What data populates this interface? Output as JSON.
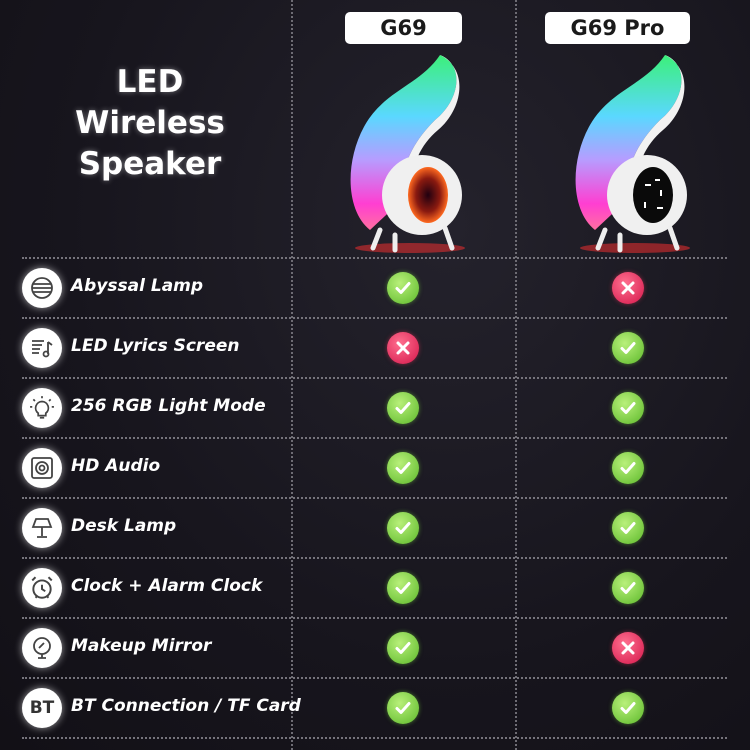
{
  "title_lines": [
    "LED",
    "Wireless",
    "Speaker"
  ],
  "models": [
    {
      "name": "G69"
    },
    {
      "name": "G69 Pro"
    }
  ],
  "colors": {
    "check": "#6cc534",
    "cross": "#e0245a",
    "background": "#16141c"
  },
  "features": [
    {
      "label": "Abyssal Lamp",
      "icon": "abyssal-lamp-icon",
      "g69": true,
      "g69pro": false
    },
    {
      "label": "LED Lyrics Screen",
      "icon": "music-lyrics-icon",
      "g69": false,
      "g69pro": true
    },
    {
      "label": "256 RGB Light Mode",
      "icon": "light-bulb-icon",
      "g69": true,
      "g69pro": true
    },
    {
      "label": "HD Audio",
      "icon": "speaker-icon",
      "g69": true,
      "g69pro": true
    },
    {
      "label": "Desk Lamp",
      "icon": "desk-lamp-icon",
      "g69": true,
      "g69pro": true
    },
    {
      "label": "Clock + Alarm Clock",
      "icon": "alarm-clock-icon",
      "g69": true,
      "g69pro": true
    },
    {
      "label": "Makeup Mirror",
      "icon": "mirror-icon",
      "g69": true,
      "g69pro": false
    },
    {
      "label": "BT Connection / TF Card",
      "icon": "bt-icon",
      "icon_text": "BT",
      "g69": true,
      "g69pro": true
    }
  ]
}
